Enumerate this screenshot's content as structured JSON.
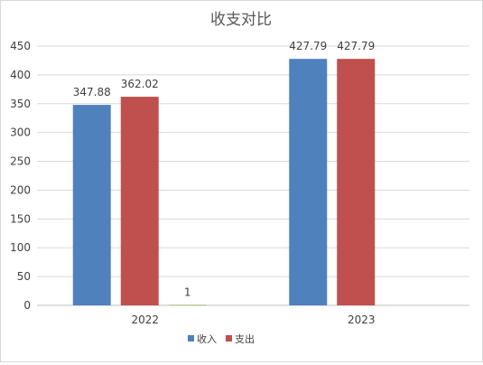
{
  "chart_data": {
    "type": "bar",
    "title": "收支对比",
    "categories": [
      "2022",
      "2023"
    ],
    "series": [
      {
        "name": "收入",
        "values": [
          347.88,
          427.79
        ],
        "labels": [
          "347.88",
          "427.79"
        ],
        "color": "#4F81BD"
      },
      {
        "name": "支出",
        "values": [
          362.02,
          427.79
        ],
        "labels": [
          "362.02",
          "427.79"
        ],
        "color": "#C0504D"
      },
      {
        "name": "",
        "values": [
          1,
          null
        ],
        "labels": [
          "1",
          ""
        ],
        "color": "#9BBB59"
      }
    ],
    "ylim": [
      0,
      450
    ],
    "yticks": [
      "0",
      "50",
      "100",
      "150",
      "200",
      "250",
      "300",
      "350",
      "400",
      "450"
    ],
    "grid": true,
    "legend": "bottom"
  }
}
